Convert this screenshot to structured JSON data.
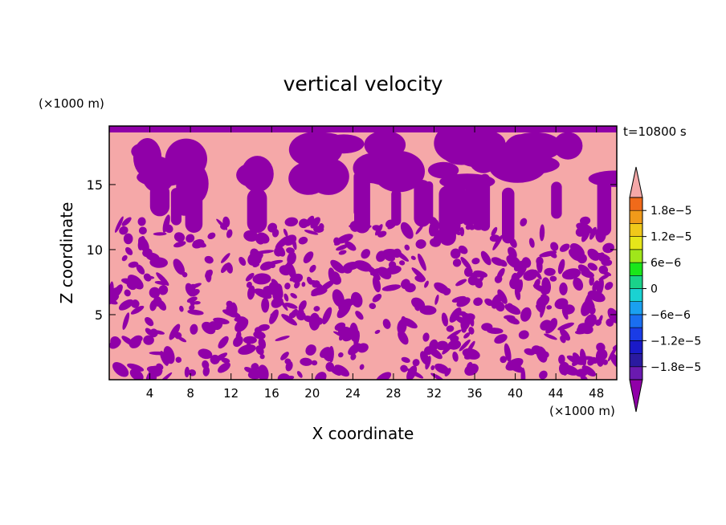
{
  "chart_data": {
    "type": "heatmap",
    "title": "vertical velocity",
    "xlabel": "X coordinate",
    "ylabel": "Z coordinate",
    "x_unit": "(×1000 m)",
    "y_unit": "(×1000 m)",
    "time_label": "t=10800 s",
    "xlim": [
      0,
      50
    ],
    "ylim": [
      0,
      19.5
    ],
    "x_ticks": [
      4,
      8,
      12,
      16,
      20,
      24,
      28,
      32,
      36,
      40,
      44,
      48
    ],
    "y_ticks": [
      5,
      10,
      15
    ],
    "colorbar": {
      "labels": [
        "1.8e−5",
        "1.2e−5",
        "6e−6",
        "0",
        "−6e−6",
        "−1.2e−5",
        "−1.8e−5"
      ],
      "label_values": [
        1.8e-05,
        1.2e-05,
        6e-06,
        0,
        -6e-06,
        -1.2e-05,
        -1.8e-05
      ],
      "levels": [
        -2.1e-05,
        -1.8e-05,
        -1.5e-05,
        -1.2e-05,
        -9e-06,
        -6e-06,
        -3e-06,
        0,
        3e-06,
        6e-06,
        9e-06,
        1.2e-05,
        1.5e-05,
        1.8e-05,
        2.1e-05
      ],
      "colors": [
        "#6a1ab0",
        "#2a1aa0",
        "#1a1ac8",
        "#1a3ce6",
        "#1a6ef0",
        "#1aa0f0",
        "#1ad2d2",
        "#1ad28a",
        "#1ae61a",
        "#a0e61a",
        "#e6e61a",
        "#f0c81a",
        "#f09a1a",
        "#f06a1a",
        "#f01a1a"
      ],
      "above_color": "#f5a8a8",
      "below_color": "#9000a8"
    },
    "field_colors": {
      "positive": "#f5a8a8",
      "negative": "#9000a8"
    }
  }
}
